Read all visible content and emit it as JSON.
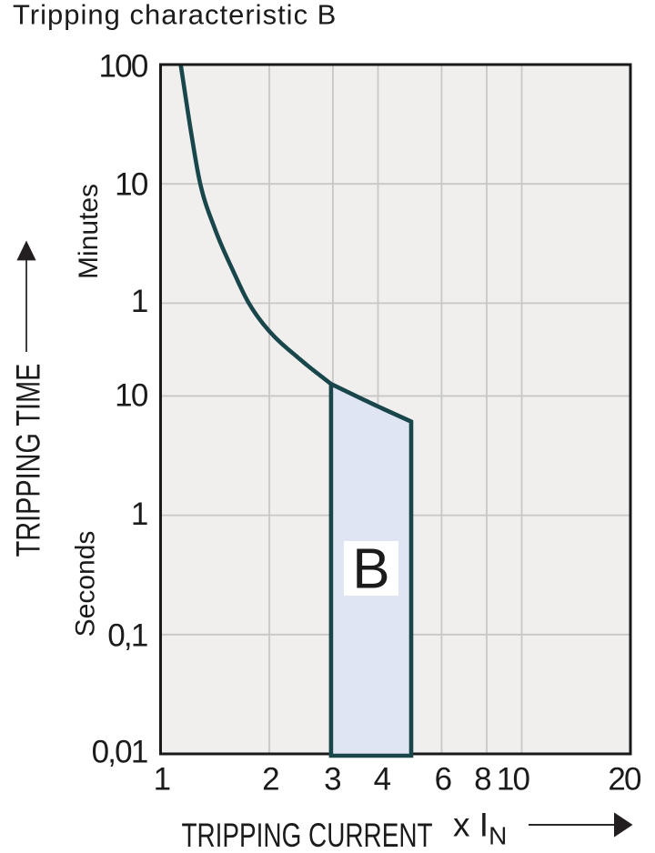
{
  "title": "Tripping characteristic B",
  "colors": {
    "background": "#ffffff",
    "plot_background": "#f0efed",
    "grid": "#c7c7c7",
    "axis_border": "#191919",
    "curve": "#19464b",
    "band_fill": "#e0e5f3",
    "band_label_background": "#ffffff",
    "text": "#1b1b1b"
  },
  "chart_data": {
    "type": "line",
    "title": "Tripping characteristic B",
    "grid": true,
    "x_axis": {
      "label": "TRIPPING CURRENT",
      "unit_prefix": "x I",
      "unit_sub": "N",
      "arrow": "right-arrow",
      "scale": "log",
      "range": [
        1,
        20
      ],
      "ticks": [
        {
          "label": "1",
          "value": 1,
          "grid": false
        },
        {
          "label": "2",
          "value": 2,
          "grid": true
        },
        {
          "label": "3",
          "value": 3,
          "grid": true
        },
        {
          "label": "4",
          "value": 4,
          "grid": true
        },
        {
          "label": "6",
          "value": 6,
          "grid": true
        },
        {
          "label": "8",
          "value": 8,
          "grid": true
        },
        {
          "label": "10",
          "value": 10,
          "grid": true
        },
        {
          "label": "20",
          "value": 20,
          "grid": false
        }
      ]
    },
    "y_axis": {
      "label": "TRIPPING TIME",
      "arrow": "up-arrow",
      "scale": "log",
      "units": [
        "Minutes",
        "Seconds"
      ],
      "range_seconds": [
        0.01,
        6000
      ],
      "ticks": [
        {
          "label": "100",
          "seconds": 6000,
          "unit": "Minutes",
          "grid": false
        },
        {
          "label": "10",
          "seconds": 600,
          "unit": "Minutes",
          "grid": true
        },
        {
          "label": "1",
          "seconds": 60,
          "unit": "Minutes",
          "grid": true
        },
        {
          "label": "10",
          "seconds": 10,
          "unit": "Seconds",
          "grid": true
        },
        {
          "label": "1",
          "seconds": 1,
          "unit": "Seconds",
          "grid": true
        },
        {
          "label": "0,1",
          "seconds": 0.1,
          "unit": "Seconds",
          "grid": true
        },
        {
          "label": "0,01",
          "seconds": 0.01,
          "unit": "Seconds",
          "grid": false
        }
      ]
    },
    "series": [
      {
        "name": "thermal-trip-curve",
        "points_current_seconds": [
          [
            1.137,
            6000
          ],
          [
            1.221,
            1500
          ],
          [
            1.29,
            600
          ],
          [
            1.412,
            260
          ],
          [
            1.61,
            105
          ],
          [
            1.765,
            60
          ],
          [
            2.0,
            35.8
          ],
          [
            2.47,
            20
          ],
          [
            3.0,
            12.6
          ]
        ]
      }
    ],
    "band": {
      "label": "B",
      "x_from": 3,
      "x_to": 5,
      "top_points_current_seconds": [
        [
          3,
          12.6
        ],
        [
          4,
          8.3
        ],
        [
          5,
          6.1
        ]
      ],
      "bottom_seconds": 0.01
    }
  }
}
